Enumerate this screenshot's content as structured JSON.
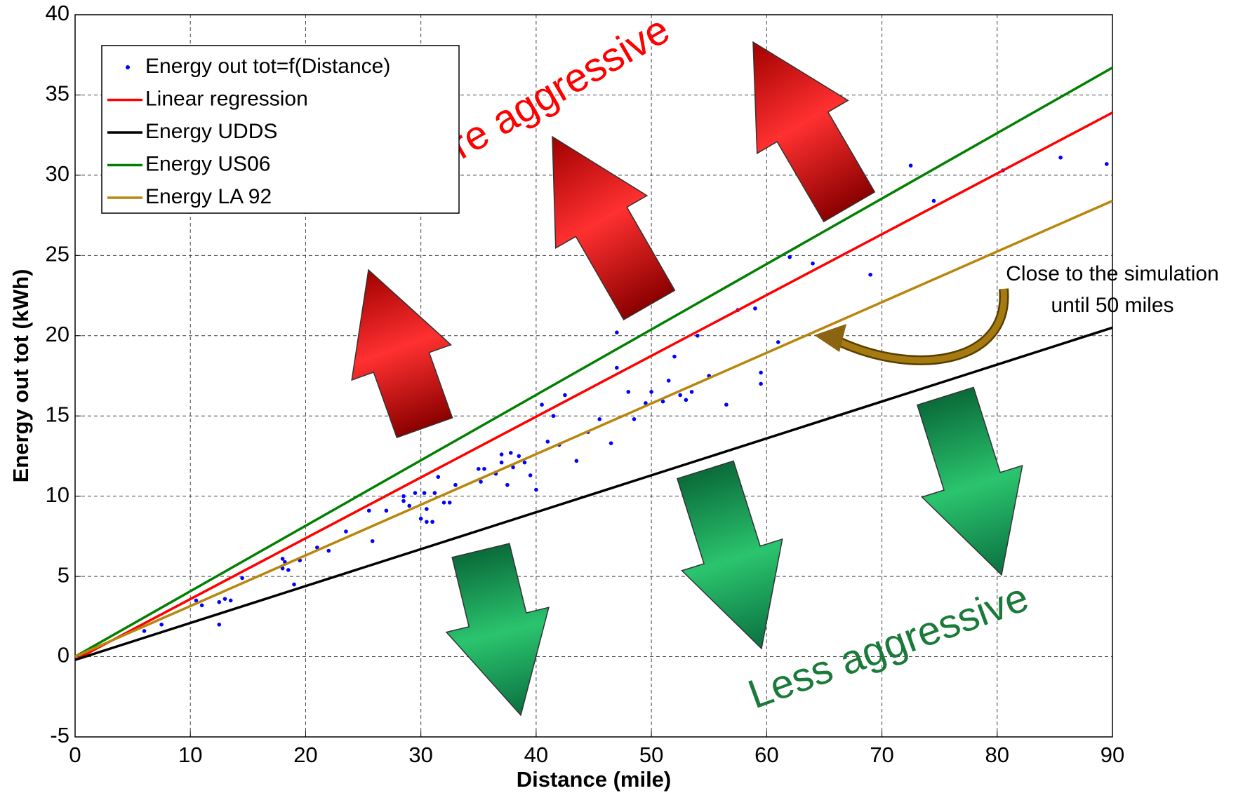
{
  "chart_data": {
    "type": "scatter",
    "xlabel": "Distance (mile)",
    "ylabel": "Energy out tot (kWh)",
    "xlim": [
      0,
      90
    ],
    "ylim": [
      -5,
      40
    ],
    "xticks": [
      0,
      10,
      20,
      30,
      40,
      50,
      60,
      70,
      80,
      90
    ],
    "yticks": [
      -5,
      0,
      5,
      10,
      15,
      20,
      25,
      30,
      35,
      40
    ],
    "grid": true,
    "legend": "upper left",
    "series": [
      {
        "name": "Energy out tot=f(Distance)",
        "type": "scatter",
        "color": "#0000ff",
        "x": [
          6,
          7.5,
          10.5,
          11,
          12.5,
          12.5,
          13,
          13.5,
          14.5,
          18,
          18,
          18.2,
          18.5,
          19,
          19.5,
          21,
          22,
          23.5,
          25.5,
          25.8,
          27,
          28.5,
          28.5,
          29,
          29.5,
          30,
          30.3,
          30.5,
          30.5,
          31,
          31.2,
          31.5,
          32,
          32.5,
          33,
          35,
          35.2,
          35.5,
          36.5,
          37,
          37,
          37.5,
          37.8,
          38,
          38.5,
          39,
          39.5,
          40,
          40.5,
          41,
          41.5,
          42,
          42.5,
          43.5,
          44.5,
          45.5,
          46.5,
          47,
          47,
          48,
          48.5,
          49.5,
          50,
          51,
          51.5,
          52,
          52.5,
          53,
          53.5,
          54,
          55,
          56.5,
          57.5,
          59,
          59.5,
          59.5,
          61,
          62,
          64,
          69,
          72.5,
          74.5,
          80.5,
          85.5,
          89.5
        ],
        "values": [
          1.6,
          2,
          3.5,
          3.2,
          2,
          3.4,
          3.6,
          3.5,
          4.9,
          5.5,
          6.1,
          5.9,
          5.4,
          4.5,
          6,
          6.8,
          6.6,
          7.8,
          9.1,
          7.2,
          9.1,
          9.7,
          10,
          9.4,
          10.2,
          8.6,
          10.2,
          9.2,
          8.4,
          8.4,
          10.2,
          11.2,
          9.6,
          9.6,
          10.7,
          11.7,
          10.9,
          11.7,
          11.4,
          12.1,
          12.6,
          10.7,
          12.7,
          11.8,
          12.5,
          12.1,
          11.3,
          10.4,
          15.7,
          13.4,
          15,
          13.2,
          16.3,
          12.2,
          14,
          14.8,
          13.3,
          18,
          20.2,
          16.5,
          14.8,
          15.8,
          16.5,
          15.9,
          17.2,
          18.7,
          16.3,
          16,
          16.5,
          20,
          17.5,
          15.7,
          21.6,
          21.7,
          17.7,
          17,
          19.6,
          24.9,
          24.5,
          23.8,
          30.6,
          28.4,
          30.3,
          31.1,
          30.7
        ]
      },
      {
        "name": "Linear regression",
        "type": "line",
        "color": "#ff0000",
        "x": [
          0,
          90
        ],
        "values": [
          -0.2,
          33.9
        ]
      },
      {
        "name": "Energy UDDS",
        "type": "line",
        "color": "#000000",
        "x": [
          0,
          90
        ],
        "values": [
          -0.2,
          20.5
        ]
      },
      {
        "name": "Energy US06",
        "type": "line",
        "color": "#008000",
        "x": [
          0,
          90
        ],
        "values": [
          0,
          36.7
        ]
      },
      {
        "name": "Energy LA 92",
        "type": "line",
        "color": "#b8860b",
        "x": [
          0,
          90
        ],
        "values": [
          0,
          28.4
        ]
      }
    ],
    "annotations": [
      "More aggressive",
      "Less aggressive",
      "Close to the simulation",
      "until 50 miles"
    ]
  }
}
